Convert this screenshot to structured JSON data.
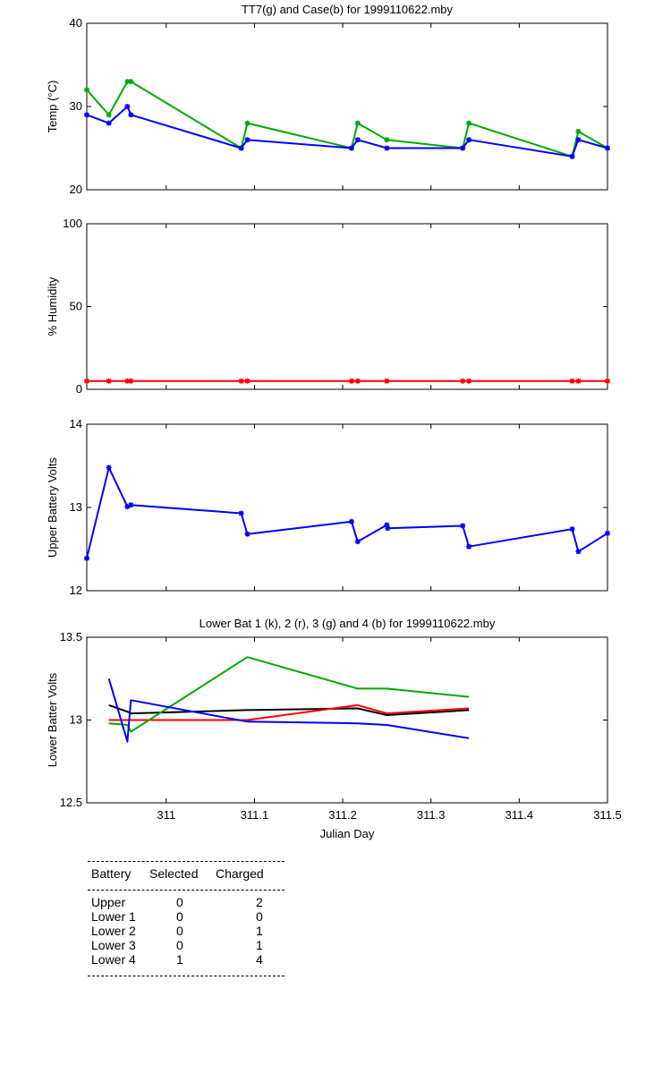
{
  "chart_data": [
    {
      "type": "line",
      "title": "TT7(g) and Case(b) for 1999110622.mby",
      "xlabel": "",
      "ylabel": "Temp  (°C)",
      "xlim": [
        310.91,
        311.5
      ],
      "ylim": [
        20,
        40
      ],
      "yticks": [
        "20",
        "30",
        "40"
      ],
      "series": [
        {
          "color": "#00aa00",
          "marker": "*",
          "x": [
            310.91,
            310.935,
            310.956,
            310.96,
            311.085,
            311.092,
            311.21,
            311.217,
            311.25,
            311.336,
            311.343,
            311.46,
            311.467,
            311.5
          ],
          "y": [
            32,
            29,
            33,
            33,
            25,
            28,
            25,
            28,
            26,
            25,
            28,
            24,
            27,
            25
          ]
        },
        {
          "color": "#0000ff",
          "marker": "*",
          "x": [
            310.91,
            310.935,
            310.956,
            310.96,
            311.085,
            311.092,
            311.21,
            311.217,
            311.25,
            311.336,
            311.343,
            311.46,
            311.467,
            311.5
          ],
          "y": [
            29,
            28,
            30,
            29,
            25,
            26,
            25,
            26,
            25,
            25,
            26,
            24,
            26,
            25
          ]
        }
      ]
    },
    {
      "type": "line",
      "title": "",
      "ylabel": "% Humidity",
      "xlim": [
        310.91,
        311.5
      ],
      "ylim": [
        0,
        100
      ],
      "yticks": [
        "0",
        "50",
        "100"
      ],
      "series": [
        {
          "color": "#ff0000",
          "marker": "*",
          "x": [
            310.91,
            310.935,
            310.956,
            310.96,
            311.085,
            311.092,
            311.21,
            311.217,
            311.25,
            311.336,
            311.343,
            311.46,
            311.467,
            311.5
          ],
          "y": [
            5,
            5,
            5,
            5,
            5,
            5,
            5,
            5,
            5,
            5,
            5,
            5,
            5,
            5
          ]
        }
      ]
    },
    {
      "type": "line",
      "title": "",
      "ylabel": "Upper Battery Volts",
      "xlim": [
        310.91,
        311.5
      ],
      "ylim": [
        12,
        14
      ],
      "yticks": [
        "12",
        "13",
        "14"
      ],
      "series": [
        {
          "color": "#0000ff",
          "marker": "*",
          "x": [
            310.91,
            310.935,
            310.956,
            310.96,
            311.085,
            311.092,
            311.21,
            311.217,
            311.25,
            311.251,
            311.336,
            311.343,
            311.46,
            311.467,
            311.5
          ],
          "y": [
            12.39,
            13.48,
            13.01,
            13.03,
            12.93,
            12.68,
            12.83,
            12.59,
            12.79,
            12.75,
            12.78,
            12.53,
            12.74,
            12.47,
            12.69
          ]
        }
      ]
    },
    {
      "type": "line",
      "title": "Lower Bat 1 (k), 2 (r), 3 (g) and 4 (b) for 1999110622.mby",
      "xlabel": "Julian Day",
      "ylabel": "Lower Batter Volts",
      "xlim": [
        310.91,
        311.5
      ],
      "ylim": [
        12.5,
        13.5
      ],
      "yticks": [
        "12.5",
        "13",
        "13.5"
      ],
      "xticks": [
        311,
        311.1,
        311.2,
        311.3,
        311.4,
        311.5
      ],
      "xticklabels": [
        "311",
        "311.1",
        "311.2",
        "311.3",
        "311.4",
        "311.5"
      ],
      "series": [
        {
          "color": "#000000",
          "x": [
            310.935,
            310.956,
            310.96,
            311.092,
            311.217,
            311.25,
            311.343
          ],
          "y": [
            13.09,
            13.05,
            13.04,
            13.06,
            13.07,
            13.03,
            13.06
          ]
        },
        {
          "color": "#ff0000",
          "x": [
            310.935,
            310.956,
            310.96,
            311.092,
            311.217,
            311.25,
            311.343
          ],
          "y": [
            13.0,
            13.0,
            13.0,
            13.0,
            13.09,
            13.04,
            13.07
          ]
        },
        {
          "color": "#00aa00",
          "x": [
            310.935,
            310.956,
            310.96,
            311.092,
            311.217,
            311.25,
            311.343
          ],
          "y": [
            12.98,
            12.97,
            12.93,
            13.38,
            13.19,
            13.19,
            13.14
          ]
        },
        {
          "color": "#0000ff",
          "x": [
            310.935,
            310.956,
            310.96,
            311.092,
            311.217,
            311.25,
            311.343
          ],
          "y": [
            13.25,
            12.87,
            13.12,
            12.99,
            12.98,
            12.97,
            12.89
          ]
        }
      ]
    }
  ],
  "table": {
    "headers": [
      "Battery",
      "Selected",
      "Charged"
    ],
    "rows": [
      [
        "Upper",
        "0",
        "2"
      ],
      [
        "Lower 1",
        "0",
        "0"
      ],
      [
        "Lower 2",
        "0",
        "1"
      ],
      [
        "Lower 3",
        "0",
        "1"
      ],
      [
        "Lower 4",
        "1",
        "4"
      ]
    ]
  }
}
